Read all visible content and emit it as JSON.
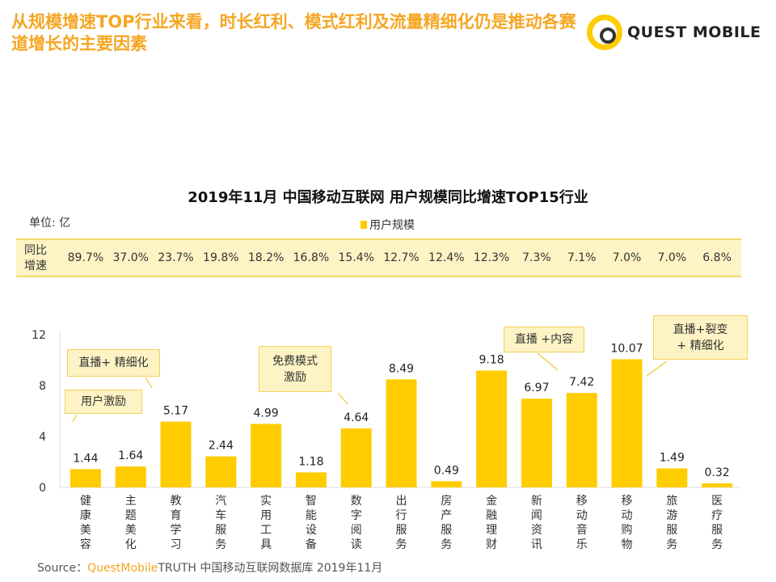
{
  "headline": "从规模增速TOP行业来看，时长红利、模式红利及流量精细化仍是推动各赛道增长的主要因素",
  "logo": "QUEST MOBILE",
  "unit": "单位: 亿",
  "growth_label": "同比\n增速",
  "growth": [
    "89.7%",
    "37.0%",
    "23.7%",
    "19.8%",
    "18.2%",
    "16.8%",
    "15.4%",
    "12.7%",
    "12.4%",
    "12.3%",
    "7.3%",
    "7.1%",
    "7.0%",
    "7.0%",
    "6.8%"
  ],
  "annotations": [
    "用户激励",
    "直播+ 精细化",
    "免费模式\n激励",
    "直播 +内容",
    "直播+裂变\n+ 精细化"
  ],
  "source": {
    "prefix": "Source：",
    "brand": "QuestMobile",
    "rest": "TRUTH 中国移动互联网数据库 2019年11月"
  },
  "colors": {
    "bar": "#ffcc00",
    "headline": "#f5a623"
  },
  "chart_data": {
    "type": "bar",
    "title": "2019年11月 中国移动互联网 用户规模同比增速TOP15行业",
    "categories": [
      "健康美容",
      "主题美化",
      "教育学习",
      "汽车服务",
      "实用工具",
      "智能设备",
      "数字阅读",
      "出行服务",
      "房产服务",
      "金融理财",
      "新闻资讯",
      "移动音乐",
      "移动购物",
      "旅游服务",
      "医疗服务"
    ],
    "series": [
      {
        "name": "用户规模",
        "values": [
          1.44,
          1.64,
          5.17,
          2.44,
          4.99,
          1.18,
          4.64,
          8.49,
          0.49,
          9.18,
          6.97,
          7.42,
          10.07,
          1.49,
          0.32
        ]
      }
    ],
    "ylim": [
      0,
      12
    ],
    "yticks": [
      0,
      4,
      8,
      12
    ],
    "legend": "top-center",
    "grid": false
  }
}
